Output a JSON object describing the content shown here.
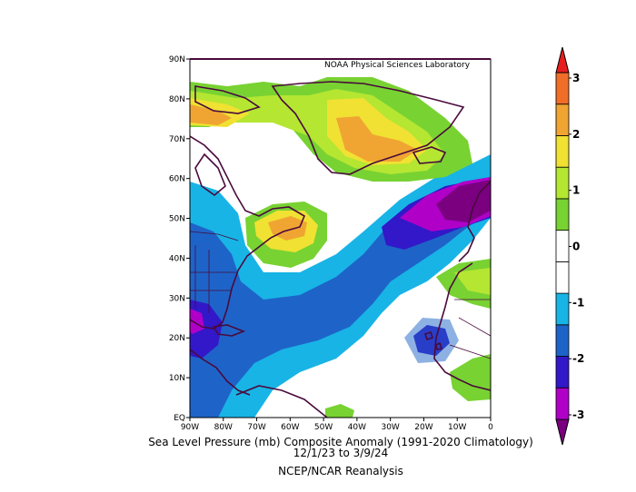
{
  "credit": "NOAA Physical Sciences Laboratory",
  "caption": {
    "title": "Sea Level Pressure (mb) Composite Anomaly (1991-2020 Climatology)",
    "dates": "12/1/23  to 3/9/24",
    "source": "NCEP/NCAR Reanalysis"
  },
  "lat_ticks": [
    "90N",
    "80N",
    "70N",
    "60N",
    "50N",
    "40N",
    "30N",
    "20N",
    "10N",
    "EQ"
  ],
  "lon_ticks": [
    "90W",
    "80W",
    "70W",
    "60W",
    "50W",
    "40W",
    "30W",
    "20W",
    "10W",
    "0"
  ],
  "colorbar": {
    "labels": [
      "3",
      "2",
      "1",
      "0",
      "-1",
      "-2",
      "-3"
    ],
    "colors": [
      "#7a0080",
      "#b000c8",
      "#3218c8",
      "#1e64c8",
      "#18b4e6",
      "#ffffff",
      "#ffffff",
      "#78d232",
      "#b4e632",
      "#f0e132",
      "#f0a532",
      "#f06e28",
      "#e61e1e"
    ]
  },
  "palette": {
    "purple_dark": "#7a0080",
    "magenta": "#b000c8",
    "indigo": "#3218c8",
    "blue": "#1e64c8",
    "cyan": "#18b4e6",
    "white": "#ffffff",
    "green": "#78d232",
    "yellowgreen": "#b4e632",
    "yellow": "#f0e132",
    "orange": "#f0a532",
    "orangered": "#f06e28",
    "red": "#e61e1e",
    "coast": "#4a0a3c"
  }
}
